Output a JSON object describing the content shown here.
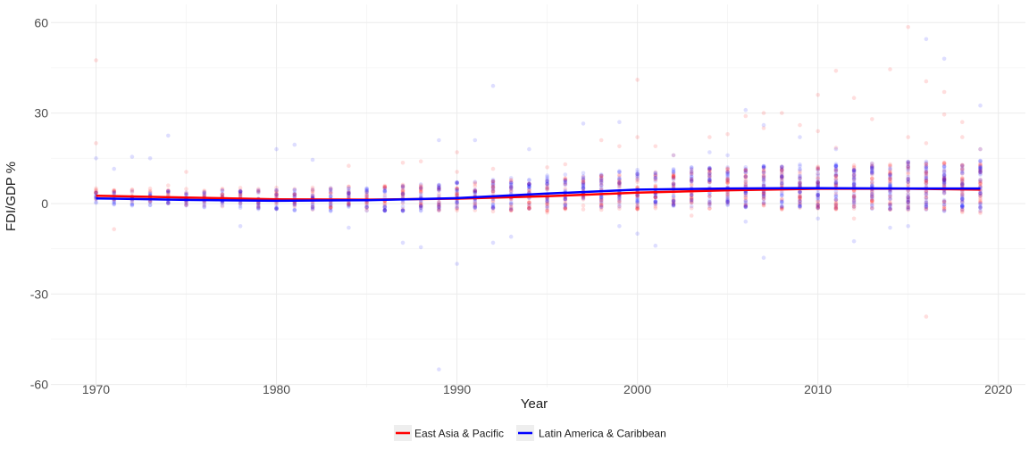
{
  "chart_data": {
    "type": "scatter",
    "title": "",
    "xlabel": "Year",
    "ylabel": "FDI/GDP %",
    "xlim": [
      1967.5,
      2021.5
    ],
    "ylim": [
      -61,
      66
    ],
    "x_ticks": [
      1970,
      1980,
      1990,
      2000,
      2010,
      2020
    ],
    "y_ticks": [
      -60,
      -30,
      0,
      30,
      60
    ],
    "grid": true,
    "legend_position": "bottom",
    "series": [
      {
        "name": "East Asia & Pacific",
        "color": "#ff0000",
        "point_alpha": 0.13,
        "trend": [
          [
            1970,
            2.6
          ],
          [
            1975,
            2.0
          ],
          [
            1980,
            1.4
          ],
          [
            1985,
            1.3
          ],
          [
            1990,
            1.6
          ],
          [
            1995,
            2.4
          ],
          [
            2000,
            3.6
          ],
          [
            2005,
            4.4
          ],
          [
            2010,
            4.9
          ],
          [
            2015,
            4.9
          ],
          [
            2019,
            4.6
          ]
        ],
        "outliers": [
          [
            1970,
            47.5
          ],
          [
            1970,
            20
          ],
          [
            1971,
            -8.5
          ],
          [
            1974,
            6
          ],
          [
            1975,
            10.5
          ],
          [
            1984,
            12.5
          ],
          [
            1987,
            13.5
          ],
          [
            1988,
            14
          ],
          [
            1990,
            17
          ],
          [
            1990,
            10.5
          ],
          [
            1992,
            11.5
          ],
          [
            1995,
            12
          ],
          [
            1996,
            13
          ],
          [
            1998,
            21
          ],
          [
            1999,
            19
          ],
          [
            2000,
            41
          ],
          [
            2000,
            22
          ],
          [
            2001,
            19
          ],
          [
            2002,
            16
          ],
          [
            2004,
            22
          ],
          [
            2005,
            23
          ],
          [
            2006,
            29
          ],
          [
            2007,
            30
          ],
          [
            2007,
            25
          ],
          [
            2008,
            30
          ],
          [
            2009,
            26
          ],
          [
            2010,
            36
          ],
          [
            2010,
            24
          ],
          [
            2011,
            44
          ],
          [
            2011,
            18.5
          ],
          [
            2012,
            35
          ],
          [
            2013,
            28
          ],
          [
            2014,
            44.5
          ],
          [
            2015,
            58.5
          ],
          [
            2015,
            22
          ],
          [
            2016,
            40.5
          ],
          [
            2016,
            20
          ],
          [
            2016,
            -37.5
          ],
          [
            2017,
            37
          ],
          [
            2017,
            29.5
          ],
          [
            2018,
            27
          ],
          [
            2018,
            22
          ],
          [
            2019,
            18
          ],
          [
            2003,
            -4
          ],
          [
            2008,
            -2
          ],
          [
            2012,
            -5
          ],
          [
            1995,
            -3
          ]
        ]
      },
      {
        "name": "Latin America & Caribbean",
        "color": "#0000ff",
        "point_alpha": 0.13,
        "trend": [
          [
            1970,
            1.7
          ],
          [
            1975,
            1.2
          ],
          [
            1980,
            0.9
          ],
          [
            1985,
            1.1
          ],
          [
            1990,
            1.8
          ],
          [
            1995,
            3.3
          ],
          [
            2000,
            4.6
          ],
          [
            2005,
            5.0
          ],
          [
            2010,
            5.1
          ],
          [
            2015,
            5.0
          ],
          [
            2019,
            5.0
          ]
        ],
        "outliers": [
          [
            1970,
            15
          ],
          [
            1971,
            11.5
          ],
          [
            1972,
            15.5
          ],
          [
            1973,
            15
          ],
          [
            1974,
            22.5
          ],
          [
            1978,
            -7.5
          ],
          [
            1980,
            18
          ],
          [
            1981,
            19.5
          ],
          [
            1982,
            14.5
          ],
          [
            1984,
            -8
          ],
          [
            1987,
            -13
          ],
          [
            1988,
            -14.5
          ],
          [
            1989,
            -55
          ],
          [
            1989,
            21
          ],
          [
            1990,
            -20
          ],
          [
            1991,
            21
          ],
          [
            1992,
            39
          ],
          [
            1992,
            -13
          ],
          [
            1993,
            -11
          ],
          [
            1994,
            18
          ],
          [
            1997,
            26.5
          ],
          [
            1999,
            27
          ],
          [
            1999,
            -7.5
          ],
          [
            2000,
            -10
          ],
          [
            2001,
            -14
          ],
          [
            2002,
            16
          ],
          [
            2004,
            17
          ],
          [
            2005,
            16
          ],
          [
            2006,
            31
          ],
          [
            2006,
            -6
          ],
          [
            2007,
            -18
          ],
          [
            2007,
            26
          ],
          [
            2009,
            22
          ],
          [
            2010,
            -5
          ],
          [
            2011,
            18
          ],
          [
            2012,
            -12.5
          ],
          [
            2014,
            -8
          ],
          [
            2015,
            -7.5
          ],
          [
            2016,
            54.5
          ],
          [
            2017,
            48
          ],
          [
            2019,
            32.5
          ],
          [
            2019,
            18
          ]
        ]
      }
    ]
  }
}
